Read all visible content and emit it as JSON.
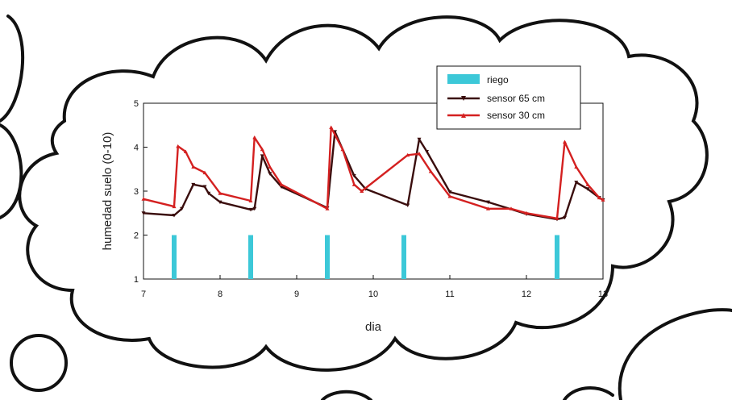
{
  "chart_data": {
    "type": "line",
    "title": "",
    "xlabel": "dia",
    "ylabel": "humedad suelo (0-10)",
    "xlim": [
      7,
      13
    ],
    "ylim": [
      1,
      5
    ],
    "xticks": [
      7,
      8,
      9,
      10,
      11,
      12,
      13
    ],
    "yticks": [
      1,
      2,
      3,
      4,
      5
    ],
    "grid": false,
    "legend_position": "top-right",
    "series": [
      {
        "name": "riego",
        "kind": "bar",
        "color": "#3cc8d8",
        "points": [
          [
            7.4,
            2.0
          ],
          [
            8.4,
            2.0
          ],
          [
            9.4,
            2.0
          ],
          [
            10.4,
            2.0
          ],
          [
            12.4,
            2.0
          ]
        ]
      },
      {
        "name": "sensor 65 cm",
        "kind": "line",
        "color": "#3a0d0d",
        "points": [
          [
            7.0,
            2.5
          ],
          [
            7.4,
            2.45
          ],
          [
            7.5,
            2.6
          ],
          [
            7.65,
            3.15
          ],
          [
            7.8,
            3.1
          ],
          [
            7.85,
            2.95
          ],
          [
            8.0,
            2.75
          ],
          [
            8.4,
            2.58
          ],
          [
            8.45,
            2.6
          ],
          [
            8.55,
            3.8
          ],
          [
            8.65,
            3.4
          ],
          [
            8.8,
            3.1
          ],
          [
            9.4,
            2.62
          ],
          [
            9.5,
            4.35
          ],
          [
            9.75,
            3.35
          ],
          [
            9.9,
            3.05
          ],
          [
            10.45,
            2.68
          ],
          [
            10.6,
            4.18
          ],
          [
            10.7,
            3.9
          ],
          [
            11.0,
            2.98
          ],
          [
            11.5,
            2.75
          ],
          [
            12.0,
            2.48
          ],
          [
            12.4,
            2.36
          ],
          [
            12.5,
            2.4
          ],
          [
            12.65,
            3.2
          ],
          [
            12.8,
            3.05
          ],
          [
            12.95,
            2.85
          ],
          [
            13.0,
            2.8
          ]
        ]
      },
      {
        "name": "sensor 30 cm",
        "kind": "line",
        "color": "#d42020",
        "points": [
          [
            7.0,
            2.82
          ],
          [
            7.4,
            2.65
          ],
          [
            7.45,
            4.02
          ],
          [
            7.55,
            3.9
          ],
          [
            7.65,
            3.55
          ],
          [
            7.8,
            3.42
          ],
          [
            8.0,
            2.95
          ],
          [
            8.4,
            2.78
          ],
          [
            8.45,
            4.22
          ],
          [
            8.55,
            3.95
          ],
          [
            8.65,
            3.55
          ],
          [
            8.8,
            3.15
          ],
          [
            9.4,
            2.6
          ],
          [
            9.45,
            4.45
          ],
          [
            9.6,
            3.95
          ],
          [
            9.75,
            3.15
          ],
          [
            9.85,
            3.0
          ],
          [
            10.45,
            3.82
          ],
          [
            10.6,
            3.85
          ],
          [
            10.75,
            3.45
          ],
          [
            11.0,
            2.88
          ],
          [
            11.5,
            2.6
          ],
          [
            11.8,
            2.6
          ],
          [
            12.0,
            2.5
          ],
          [
            12.4,
            2.38
          ],
          [
            12.5,
            4.12
          ],
          [
            12.65,
            3.55
          ],
          [
            12.8,
            3.15
          ],
          [
            12.95,
            2.85
          ],
          [
            13.0,
            2.8
          ]
        ]
      }
    ]
  }
}
